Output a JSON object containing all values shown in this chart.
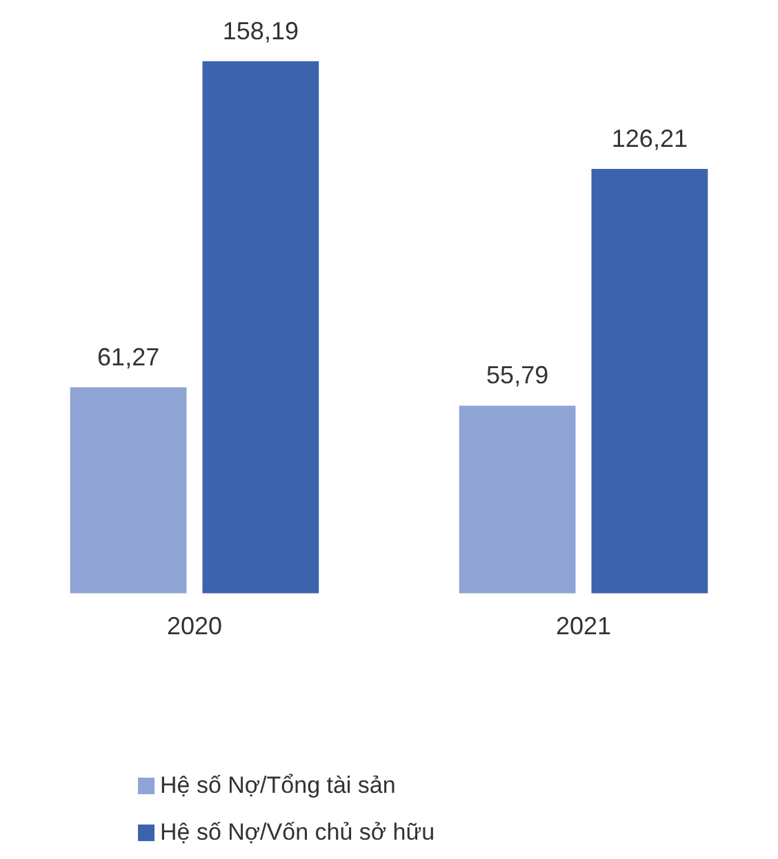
{
  "chart_data": {
    "type": "bar",
    "categories": [
      "2020",
      "2021"
    ],
    "series": [
      {
        "name": "Hệ số Nợ/Tổng tài sản",
        "color": "#8fa4d4",
        "values": [
          61.27,
          55.79
        ],
        "value_labels": [
          "61,27",
          "55,79"
        ]
      },
      {
        "name": "Hệ số Nợ/Vốn chủ sở hữu",
        "color": "#3d63ad",
        "values": [
          158.19,
          126.21
        ],
        "value_labels": [
          "158,19",
          "126,21"
        ]
      }
    ],
    "grid": false,
    "legend": "bottom left"
  }
}
